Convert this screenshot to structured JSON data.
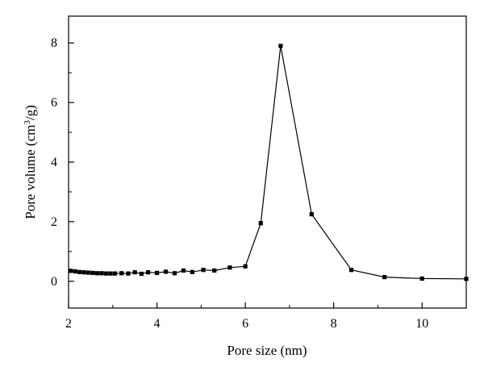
{
  "chart_data": {
    "type": "line",
    "title": "",
    "xlabel": "Pore size (nm)",
    "ylabel_parts": {
      "prefix": "Pore volume (cm",
      "sup": "3",
      "suffix": "/g)"
    },
    "xlim": [
      2,
      11
    ],
    "ylim": [
      -0.9,
      8.9
    ],
    "x_ticks": [
      2,
      4,
      6,
      8,
      10
    ],
    "x_minor_ticks": [
      3,
      5,
      7,
      9
    ],
    "y_ticks": [
      0,
      2,
      4,
      6,
      8
    ],
    "y_minor_ticks": [
      -1,
      1,
      3,
      5,
      7
    ],
    "grid": false,
    "legend": "none",
    "marker": "square",
    "series_color": "#000000",
    "series": [
      {
        "x": [
          2.05,
          2.15,
          2.25,
          2.35,
          2.45,
          2.55,
          2.65,
          2.75,
          2.85,
          2.95,
          3.05,
          3.2,
          3.35,
          3.5,
          3.65,
          3.8,
          4.0,
          4.2,
          4.4,
          4.6,
          4.8,
          5.05,
          5.3,
          5.65,
          6.0,
          6.35,
          6.8,
          7.5,
          8.4,
          9.15,
          10.0,
          11.0
        ],
        "y": [
          0.35,
          0.33,
          0.31,
          0.3,
          0.29,
          0.28,
          0.27,
          0.27,
          0.26,
          0.26,
          0.26,
          0.27,
          0.26,
          0.3,
          0.25,
          0.3,
          0.28,
          0.32,
          0.27,
          0.36,
          0.31,
          0.38,
          0.36,
          0.46,
          0.5,
          1.95,
          7.9,
          2.25,
          0.38,
          0.14,
          0.09,
          0.08
        ]
      }
    ]
  }
}
